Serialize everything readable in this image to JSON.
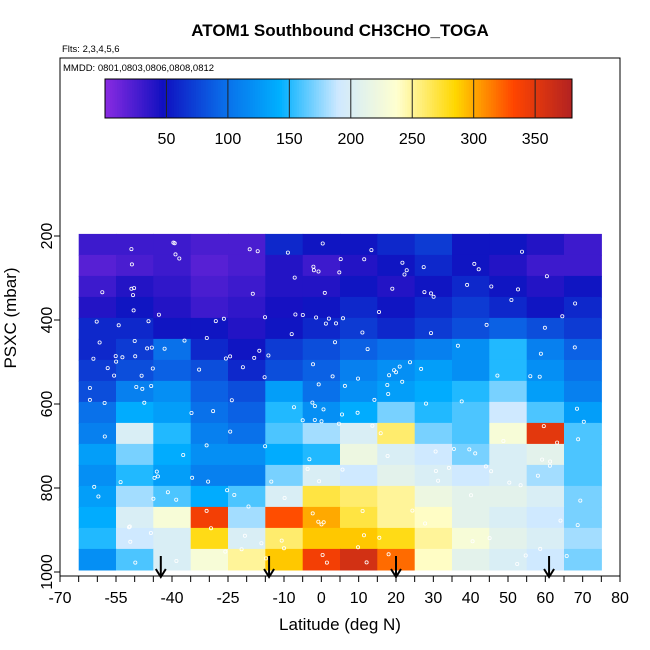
{
  "chart_data": {
    "type": "heatmap",
    "title": "ATOM1 Southbound CH3CHO_TOGA",
    "subtitle_flights": "Flts: 2,3,4,5,6",
    "subtitle_dates": "MMDD: 0801,0803,0806,0808,0812",
    "xlabel": "Latitude (deg N)",
    "ylabel": "PSXC (mbar)",
    "xlim": [
      -70,
      80
    ],
    "ylim": [
      1000,
      0
    ],
    "y_reversed": true,
    "x_ticks": [
      -70,
      -55,
      -40,
      -25,
      -10,
      0,
      10,
      20,
      30,
      40,
      50,
      60,
      70,
      80
    ],
    "y_ticks": [
      200,
      400,
      600,
      800,
      1000
    ],
    "colorbar": {
      "range": [
        0,
        380
      ],
      "ticks": [
        50,
        100,
        150,
        200,
        250,
        300,
        350
      ],
      "colors": [
        "#8a2be2",
        "#1010c0",
        "#0a6ae8",
        "#00b0ff",
        "#cfe9ff",
        "#ffffd0",
        "#ffd700",
        "#ff4500",
        "#b22222"
      ]
    },
    "pressure_levels": [
      220,
      270,
      320,
      370,
      420,
      470,
      520,
      570,
      620,
      670,
      720,
      770,
      820,
      870,
      920,
      970
    ],
    "lat_bins": [
      -60,
      -50,
      -40,
      -30,
      -20,
      -10,
      0,
      10,
      20,
      30,
      40,
      50,
      60,
      70
    ],
    "values": [
      [
        30,
        30,
        30,
        25,
        25,
        60,
        50,
        50,
        60,
        70,
        50,
        50,
        40,
        30
      ],
      [
        20,
        25,
        30,
        20,
        25,
        40,
        30,
        40,
        50,
        60,
        50,
        40,
        30,
        30
      ],
      [
        30,
        40,
        35,
        25,
        30,
        40,
        40,
        50,
        40,
        50,
        60,
        50,
        40,
        50
      ],
      [
        40,
        50,
        40,
        30,
        35,
        45,
        50,
        60,
        50,
        60,
        70,
        60,
        50,
        60
      ],
      [
        60,
        60,
        50,
        50,
        40,
        50,
        60,
        70,
        60,
        70,
        80,
        90,
        80,
        70
      ],
      [
        60,
        70,
        100,
        60,
        50,
        70,
        80,
        90,
        100,
        110,
        120,
        150,
        110,
        90
      ],
      [
        70,
        80,
        90,
        80,
        60,
        80,
        90,
        110,
        120,
        130,
        120,
        150,
        120,
        100
      ],
      [
        80,
        110,
        120,
        90,
        80,
        130,
        100,
        120,
        130,
        140,
        150,
        170,
        130,
        110
      ],
      [
        100,
        140,
        130,
        100,
        90,
        150,
        120,
        140,
        170,
        150,
        160,
        190,
        160,
        130
      ],
      [
        110,
        200,
        150,
        110,
        100,
        160,
        180,
        200,
        260,
        170,
        160,
        230,
        350,
        160
      ],
      [
        130,
        170,
        140,
        120,
        120,
        140,
        150,
        220,
        200,
        190,
        170,
        200,
        210,
        160
      ],
      [
        120,
        150,
        130,
        110,
        110,
        170,
        200,
        190,
        210,
        200,
        190,
        200,
        180,
        160
      ],
      [
        130,
        180,
        160,
        140,
        160,
        200,
        270,
        260,
        250,
        220,
        210,
        210,
        200,
        170
      ],
      [
        140,
        200,
        230,
        340,
        180,
        330,
        300,
        270,
        250,
        240,
        210,
        200,
        190,
        170
      ],
      [
        150,
        190,
        200,
        280,
        200,
        260,
        290,
        290,
        280,
        250,
        230,
        210,
        200,
        180
      ],
      [
        120,
        160,
        200,
        230,
        250,
        290,
        340,
        360,
        320,
        240,
        210,
        200,
        190,
        170
      ]
    ],
    "arrow_latitudes": [
      -43,
      -14,
      20,
      61
    ]
  }
}
